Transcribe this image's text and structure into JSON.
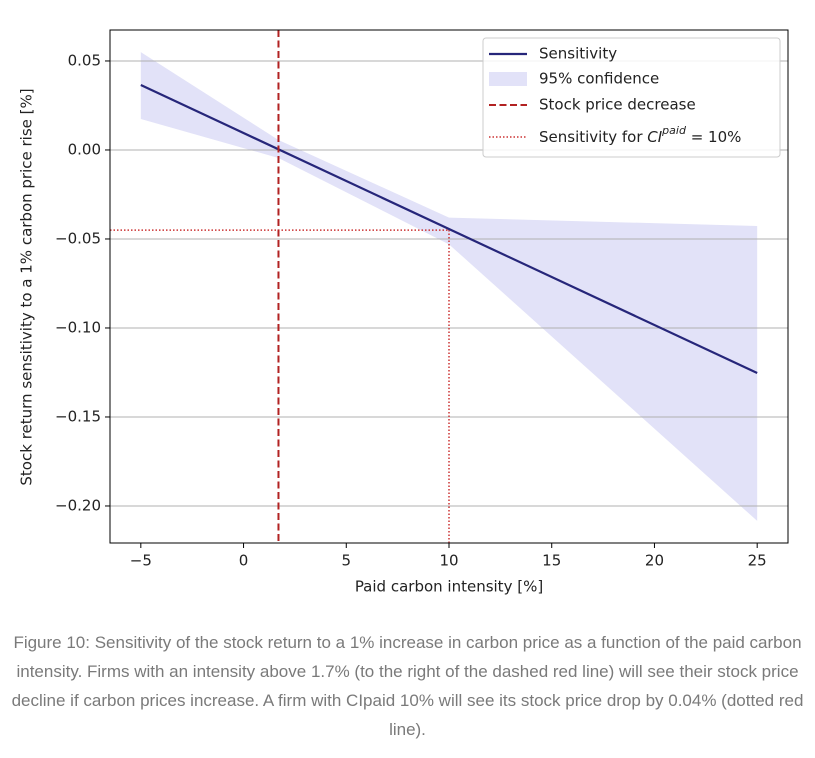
{
  "chart_data": {
    "type": "line",
    "xlabel": "Paid carbon intensity [%]",
    "ylabel": "Stock return sensitivity to a 1% carbon price rise [%]",
    "xlim": [
      -6.5,
      26.5
    ],
    "ylim": [
      -0.2208,
      0.0674
    ],
    "xticks": [
      {
        "value": -5,
        "label": "−5"
      },
      0,
      5,
      10,
      15,
      20,
      25
    ],
    "yticks": [
      {
        "value": 0.05,
        "label": "0.05"
      },
      {
        "value": 0,
        "label": "0.00"
      },
      {
        "value": -0.05,
        "label": "−0.05"
      },
      {
        "value": -0.1,
        "label": "−0.10"
      },
      {
        "value": -0.15,
        "label": "−0.15"
      },
      {
        "value": -0.2,
        "label": "−0.20"
      }
    ],
    "grid": true,
    "series": [
      {
        "name": "Sensitivity",
        "color": "#26267a",
        "x": [
          -5,
          25
        ],
        "values": [
          0.0365,
          -0.1253
        ]
      }
    ],
    "band": {
      "name": "95% confidence",
      "color": "#e2e2f8",
      "x": [
        -5,
        1.7,
        10,
        25
      ],
      "upper": [
        0.055,
        0.0056,
        -0.038,
        -0.0427
      ],
      "lower": [
        0.0174,
        -0.0045,
        -0.053,
        -0.2084
      ]
    },
    "vline": {
      "name": "Stock price decrease",
      "color": "#b22222",
      "x": 1.7
    },
    "highlight": {
      "name_parts": [
        "Sensitivity for ",
        "CI",
        "paid",
        " = 10%"
      ],
      "color": "#cc3333",
      "x": 10,
      "y": -0.045
    },
    "legend": "upper right"
  },
  "caption": "Figure 10: Sensitivity of the stock return to a 1% increase in carbon price as a function of the paid carbon intensity. Firms with an intensity above 1.7% (to the right of the dashed red line) will see their stock price decline if carbon prices increase. A firm with CIpaid 10% will see its stock price drop by 0.04% (dotted red line)."
}
